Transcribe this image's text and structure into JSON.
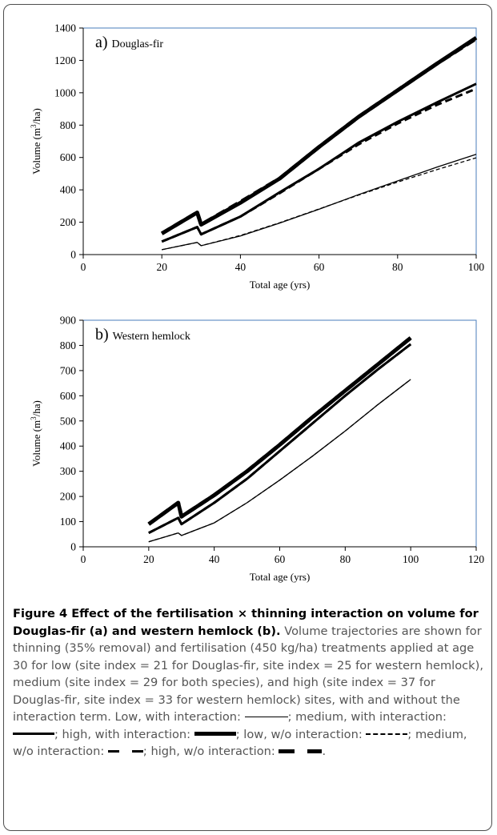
{
  "colors": {
    "plot_border": "#4a7ebb",
    "line": "#000000",
    "caption_text": "#555555"
  },
  "chart_data": [
    {
      "type": "line",
      "title": "a) Douglas-fir",
      "title_prefix": "a)",
      "title_name": "Douglas-fir",
      "xlabel": "Total age (yrs)",
      "ylabel": "Volume (m3/ha)",
      "ylabel_main": "Volume (m",
      "ylabel_sup": "3",
      "ylabel_end": "/ha)",
      "xlim": [
        0,
        100
      ],
      "ylim": [
        0,
        1400
      ],
      "xticks": [
        0,
        20,
        40,
        60,
        80,
        100
      ],
      "yticks": [
        0,
        200,
        400,
        600,
        800,
        1000,
        1200,
        1400
      ],
      "grid": false,
      "series": [
        {
          "weight": "thin",
          "style": "solid",
          "x": [
            20,
            29,
            30,
            40,
            50,
            60,
            70,
            80,
            90,
            100
          ],
          "y": [
            30,
            75,
            55,
            115,
            195,
            280,
            370,
            455,
            540,
            620
          ]
        },
        {
          "weight": "thin",
          "style": "dashed",
          "x": [
            20,
            29,
            30,
            40,
            50,
            60,
            70,
            80,
            90,
            100
          ],
          "y": [
            30,
            75,
            55,
            118,
            197,
            282,
            367,
            448,
            525,
            598
          ]
        },
        {
          "weight": "medium",
          "style": "solid",
          "x": [
            20,
            29,
            30,
            40,
            50,
            60,
            70,
            80,
            90,
            100
          ],
          "y": [
            80,
            170,
            125,
            235,
            385,
            530,
            690,
            820,
            940,
            1055
          ]
        },
        {
          "weight": "medium",
          "style": "dashed",
          "x": [
            20,
            29,
            30,
            40,
            50,
            60,
            70,
            80,
            90,
            100
          ],
          "y": [
            80,
            170,
            125,
            235,
            380,
            530,
            680,
            810,
            925,
            1025
          ]
        },
        {
          "weight": "thick",
          "style": "solid",
          "x": [
            20,
            29,
            30,
            40,
            50,
            60,
            70,
            80,
            90,
            100
          ],
          "y": [
            130,
            260,
            185,
            320,
            470,
            665,
            850,
            1015,
            1180,
            1340
          ]
        },
        {
          "weight": "thick",
          "style": "dashed",
          "x": [
            20,
            29,
            30,
            40,
            50,
            60,
            70,
            80,
            90,
            100
          ],
          "y": [
            130,
            260,
            185,
            325,
            470,
            665,
            850,
            1015,
            1180,
            1335
          ]
        }
      ]
    },
    {
      "type": "line",
      "title": "b) Western hemlock",
      "title_prefix": "b)",
      "title_name": "Western hemlock",
      "xlabel": "Total age (yrs)",
      "ylabel": "Volume (m3/ha)",
      "ylabel_main": "Volume (m",
      "ylabel_sup": "3",
      "ylabel_end": "/ha)",
      "xlim": [
        0,
        120
      ],
      "ylim": [
        0,
        900
      ],
      "xticks": [
        0,
        20,
        40,
        60,
        80,
        100,
        120
      ],
      "yticks": [
        0,
        100,
        200,
        300,
        400,
        500,
        600,
        700,
        800,
        900
      ],
      "grid": false,
      "series": [
        {
          "weight": "thin",
          "style": "solid",
          "x": [
            20,
            29,
            30,
            40,
            50,
            60,
            70,
            80,
            90,
            100
          ],
          "y": [
            20,
            55,
            45,
            95,
            175,
            265,
            360,
            460,
            565,
            665
          ]
        },
        {
          "weight": "thin",
          "style": "dashed",
          "x": [
            20,
            29,
            30,
            40,
            50,
            60,
            70,
            80,
            90,
            100
          ],
          "y": [
            20,
            55,
            45,
            95,
            175,
            265,
            360,
            460,
            565,
            665
          ]
        },
        {
          "weight": "medium",
          "style": "solid",
          "x": [
            20,
            29,
            30,
            40,
            50,
            60,
            70,
            80,
            90,
            100
          ],
          "y": [
            55,
            115,
            90,
            175,
            270,
            380,
            490,
            600,
            705,
            805
          ]
        },
        {
          "weight": "medium",
          "style": "dashed",
          "x": [
            20,
            29,
            30,
            40,
            50,
            60,
            70,
            80,
            90,
            100
          ],
          "y": [
            55,
            115,
            90,
            175,
            270,
            380,
            490,
            600,
            705,
            805
          ]
        },
        {
          "weight": "thick",
          "style": "solid",
          "x": [
            20,
            29,
            30,
            40,
            50,
            60,
            70,
            80,
            90,
            100
          ],
          "y": [
            90,
            175,
            120,
            205,
            300,
            405,
            515,
            620,
            725,
            830
          ]
        },
        {
          "weight": "thick",
          "style": "dashed",
          "x": [
            20,
            29,
            30,
            40,
            50,
            60,
            70,
            80,
            90,
            100
          ],
          "y": [
            90,
            175,
            120,
            205,
            300,
            405,
            515,
            620,
            725,
            830
          ]
        }
      ]
    }
  ],
  "caption": {
    "bold": "Figure 4 Effect of the fertilisation × thinning interaction on volume for Douglas-fir (a) and western hemlock (b).",
    "text": " Volume trajectories are shown for thinning (35% removal) and fertilisation (450 kg/ha) treatments applied at age 30 for low (site index = 21 for Douglas-fir, site index = 25 for western hemlock), medium (site index = 29 for both species), and high (site index = 37 for Douglas-fir, site index = 33 for western hemlock) sites, with and without the interaction term. Low, with interaction: ",
    "t2": "; medium, with interaction: ",
    "t3": "; high, with interaction: ",
    "t4": "; low, w/o interaction: ",
    "t5": "; medium, w/o interaction: ",
    "t6": "; high, w/o interaction: ",
    "t7": "."
  }
}
